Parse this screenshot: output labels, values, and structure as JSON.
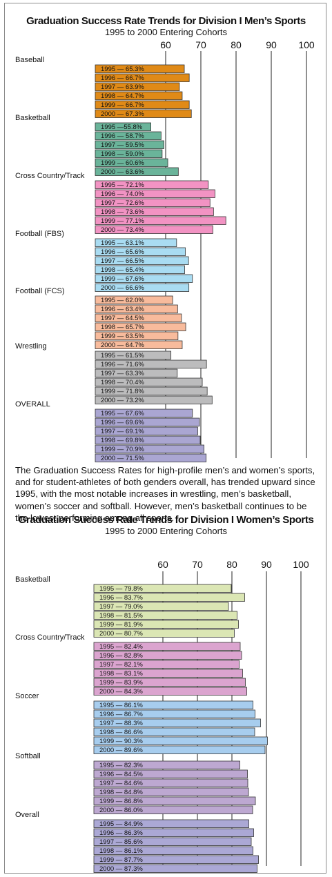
{
  "chart_data": [
    {
      "type": "bar",
      "orientation": "horizontal",
      "title": "Graduation Success Rate Trends for Division I Men’s Sports",
      "subtitle": "1995 to 2000 Entering Cohorts",
      "tick_labels": [
        "60",
        "70",
        "80",
        "90",
        "100"
      ],
      "xlim": [
        40,
        101
      ],
      "groups": [
        {
          "name": "Baseball",
          "color": "#e08a17",
          "bars": [
            {
              "label": "1995 — 65.3%",
              "value": 65.3
            },
            {
              "label": "1996 — 66.7%",
              "value": 66.7
            },
            {
              "label": "1997 — 63.9%",
              "value": 63.9
            },
            {
              "label": "1998 — 64.7%",
              "value": 64.7
            },
            {
              "label": "1999 — 66.7%",
              "value": 66.7
            },
            {
              "label": "2000 — 67.3%",
              "value": 67.3
            }
          ]
        },
        {
          "name": "Basketball",
          "color": "#6ab49a",
          "bars": [
            {
              "label": "1995 —55.8%",
              "value": 55.8
            },
            {
              "label": "1996 — 58.7%",
              "value": 58.7
            },
            {
              "label": "1997 — 59.5%",
              "value": 59.5
            },
            {
              "label": "1998 — 59.0%",
              "value": 59.0
            },
            {
              "label": "1999 — 60.6%",
              "value": 60.6
            },
            {
              "label": "2000 — 63.6%",
              "value": 63.6
            }
          ]
        },
        {
          "name": "Cross Country/Track",
          "color": "#f293c3",
          "bars": [
            {
              "label": "1995 — 72.1%",
              "value": 72.1
            },
            {
              "label": "1996 — 74.0%",
              "value": 74.0
            },
            {
              "label": "1997 — 72.6%",
              "value": 72.6
            },
            {
              "label": "1998 — 73.6%",
              "value": 73.6
            },
            {
              "label": "1999 — 77.1%",
              "value": 77.1
            },
            {
              "label": "2000 — 73.4%",
              "value": 73.4
            }
          ]
        },
        {
          "name": "Football (FBS)",
          "color": "#a9dcf2",
          "bars": [
            {
              "label": "1995 — 63.1%",
              "value": 63.1
            },
            {
              "label": "1996 — 65.6%",
              "value": 65.6
            },
            {
              "label": "1997 — 66.5%",
              "value": 66.5
            },
            {
              "label": "1998 — 65.4%",
              "value": 65.4
            },
            {
              "label": "1999 — 67.6%",
              "value": 67.6
            },
            {
              "label": "2000 — 66.6%",
              "value": 66.6
            }
          ]
        },
        {
          "name": "Football (FCS)",
          "color": "#f8bb9c",
          "bars": [
            {
              "label": "1995 — 62.0%",
              "value": 62.0
            },
            {
              "label": "1996 — 63.4%",
              "value": 63.4
            },
            {
              "label": "1997 — 64.5%",
              "value": 64.5
            },
            {
              "label": "1998 — 65.7%",
              "value": 65.7
            },
            {
              "label": "1999 — 63.5%",
              "value": 63.5
            },
            {
              "label": "2000 — 64.7%",
              "value": 64.7
            }
          ]
        },
        {
          "name": "Wrestling",
          "color": "#bcbcbd",
          "bars": [
            {
              "label": "1995 — 61.5%",
              "value": 61.5
            },
            {
              "label": "1996 — 71.6%",
              "value": 71.6
            },
            {
              "label": "1997 — 63.3%",
              "value": 63.3
            },
            {
              "label": "1998 — 70.4%",
              "value": 70.4
            },
            {
              "label": "1999 — 71.8%",
              "value": 71.8
            },
            {
              "label": "2000 — 73.2%",
              "value": 73.2
            }
          ]
        },
        {
          "name": "OVERALL",
          "color": "#aaa6d2",
          "bars": [
            {
              "label": "1995 — 67.6%",
              "value": 67.6
            },
            {
              "label": "1996 — 69.6%",
              "value": 69.6
            },
            {
              "label": "1997 — 69.1%",
              "value": 69.1
            },
            {
              "label": "1998 — 69.8%",
              "value": 69.8
            },
            {
              "label": "1999 — 70.9%",
              "value": 70.9
            },
            {
              "label": "2000 — 71.5%",
              "value": 71.5
            }
          ]
        }
      ]
    },
    {
      "type": "bar",
      "orientation": "horizontal",
      "title": "Graduation Success Rate Trends for Division I Women’s Sports",
      "subtitle": "1995 to 2000 Entering Cohorts",
      "tick_labels": [
        "60",
        "70",
        "80",
        "90",
        "100"
      ],
      "xlim": [
        40,
        101
      ],
      "groups": [
        {
          "name": "Basketball",
          "color": "#dbe6b4",
          "bars": [
            {
              "label": "1995 — 79.8%",
              "value": 79.8
            },
            {
              "label": "1996 — 83.7%",
              "value": 83.7
            },
            {
              "label": "1997 — 79.0%",
              "value": 79.0
            },
            {
              "label": "1998 — 81.5%",
              "value": 81.5
            },
            {
              "label": "1999 — 81.9%",
              "value": 81.9
            },
            {
              "label": "2000 — 80.7%",
              "value": 80.7
            }
          ]
        },
        {
          "name": "Cross Country/Track",
          "color": "#dba4cf",
          "bars": [
            {
              "label": "1995 — 82.4%",
              "value": 82.4
            },
            {
              "label": "1996 — 82.8%",
              "value": 82.8
            },
            {
              "label": "1997 — 82.1%",
              "value": 82.1
            },
            {
              "label": "1998 — 83.1%",
              "value": 83.1
            },
            {
              "label": "1999 — 83.9%",
              "value": 83.9
            },
            {
              "label": "2000 — 84.3%",
              "value": 84.3
            }
          ]
        },
        {
          "name": "Soccer",
          "color": "#a7cdee",
          "bars": [
            {
              "label": "1995 — 86.1%",
              "value": 86.1
            },
            {
              "label": "1996 — 86.7%",
              "value": 86.7
            },
            {
              "label": "1997 — 88.3%",
              "value": 88.3
            },
            {
              "label": "1998 — 86.6%",
              "value": 86.6
            },
            {
              "label": "1999 — 90.3%",
              "value": 90.3
            },
            {
              "label": "2000 — 89.6%",
              "value": 89.6
            }
          ]
        },
        {
          "name": "Softball",
          "color": "#bda8d1",
          "bars": [
            {
              "label": "1995 — 82.3%",
              "value": 82.3
            },
            {
              "label": "1996 — 84.5%",
              "value": 84.5
            },
            {
              "label": "1997 — 84.6%",
              "value": 84.6
            },
            {
              "label": "1998 — 84.8%",
              "value": 84.8
            },
            {
              "label": "1999 — 86.8%",
              "value": 86.8
            },
            {
              "label": "2000 — 86.0%",
              "value": 86.0
            }
          ]
        },
        {
          "name": "Overall",
          "color": "#aba8d5",
          "bars": [
            {
              "label": "1995 — 84.9%",
              "value": 84.9
            },
            {
              "label": "1996 — 86.3%",
              "value": 86.3
            },
            {
              "label": "1997 — 85.6%",
              "value": 85.6
            },
            {
              "label": "1998 — 86.1%",
              "value": 86.1
            },
            {
              "label": "1999 — 87.7%",
              "value": 87.7
            },
            {
              "label": "2000 — 87.3%",
              "value": 87.3
            }
          ]
        }
      ]
    }
  ],
  "paragraph": "The Graduation Success Rates for high-profile men’s and women’s sports, and for student-athletes of both genders overall, has trended upward since 1995, with the most notable increases in wrestling, men’s basketball, women’s soccer and softball. However, men’s basketball continues to be the lowest performing among all sports."
}
